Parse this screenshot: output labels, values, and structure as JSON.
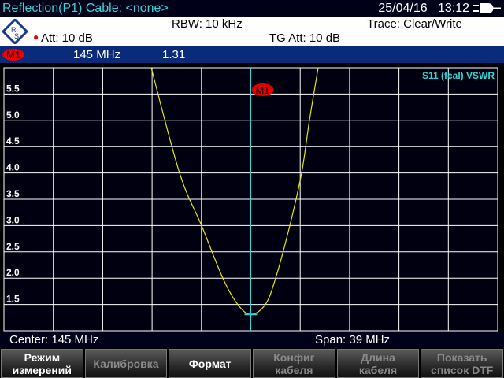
{
  "header": {
    "title": "Reflection(P1)  Cable: <none>",
    "date": "25/04/16",
    "time": "13:12"
  },
  "info": {
    "rbw": "RBW:  10 kHz",
    "trace": "Trace:  Clear/Write",
    "att": "Att: 10 dB",
    "tg_att": "TG Att:  10 dB"
  },
  "marker": {
    "label": "M1",
    "freq": "145  MHz",
    "value": "1.31"
  },
  "trace_label": "S11 (fcal) VSWR",
  "footer": {
    "center": "Center:  145 MHz",
    "span": "Span:      39 MHz"
  },
  "softkeys": [
    {
      "l1": "Режим",
      "l2": "измерений",
      "enabled": true
    },
    {
      "l1": "Калибровка",
      "l2": "",
      "enabled": false
    },
    {
      "l1": "Формат",
      "l2": "",
      "enabled": true
    },
    {
      "l1": "Конфиг",
      "l2": "кабеля",
      "enabled": false
    },
    {
      "l1": "Длина",
      "l2": "кабеля",
      "enabled": false
    },
    {
      "l1": "Показать",
      "l2": "список DTF",
      "enabled": false
    }
  ],
  "colors": {
    "trace": "#e8e800",
    "marker_line": "#33d6d6",
    "marker_badge": "#e00000",
    "grid": "#ffffff"
  },
  "chart_data": {
    "type": "line",
    "xlim": [
      125.5,
      164.5
    ],
    "ylim": [
      1.0,
      6.0
    ],
    "yticks": [
      "5.5",
      "5.0",
      "4.5",
      "4.0",
      "3.5",
      "3.0",
      "2.5",
      "2.0",
      "1.5"
    ],
    "x": [
      137.13,
      139.37,
      141.11,
      142.79,
      143.97,
      145.0,
      146.15,
      146.96,
      148.08,
      149.01,
      149.63,
      150.32
    ],
    "y": [
      6.0,
      4.0,
      3.0,
      2.0,
      1.5,
      1.31,
      1.5,
      2.0,
      3.0,
      4.0,
      5.0,
      6.0
    ],
    "marker_x": 145.0,
    "grid": true
  }
}
